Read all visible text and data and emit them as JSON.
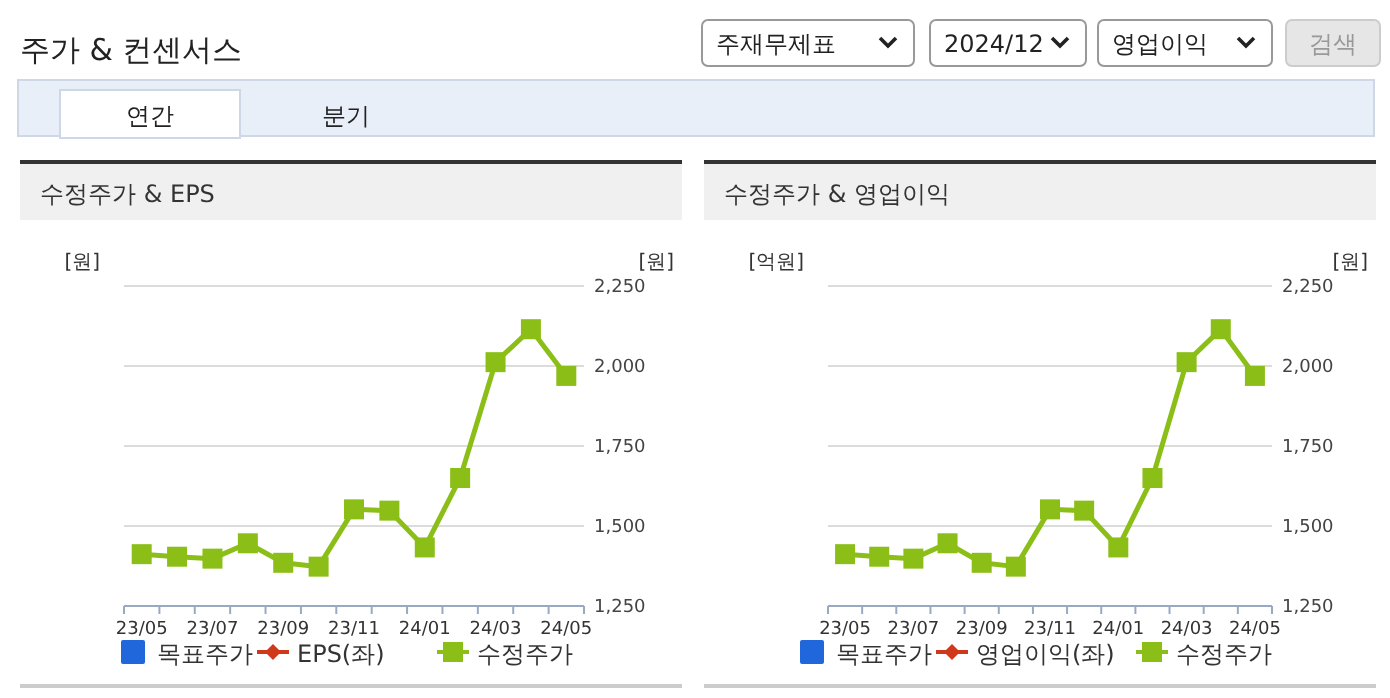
{
  "chart_data": [
    {
      "type": "other",
      "title": "주가 & 컨센서스",
      "annotations": [
        "주재무제표",
        "2024/12",
        "영업이익",
        "검색",
        "연간",
        "분기"
      ]
    },
    {
      "type": "line",
      "title": "수정주가 & EPS",
      "ylabel": "[원]",
      "y2label": "[원]",
      "categories": [
        "23/05",
        null,
        "23/07",
        null,
        "23/09",
        null,
        "23/11",
        null,
        "24/01",
        null,
        "24/03",
        null,
        "24/05"
      ],
      "y2lim": [
        1250,
        2250
      ],
      "y2ticks": [
        {
          "value": 1250,
          "label": "1,250"
        },
        {
          "value": 1500,
          "label": "1,500"
        },
        {
          "value": 1750,
          "label": "1,750"
        },
        {
          "value": 2000,
          "label": "2,000"
        },
        {
          "value": 2250,
          "label": "2,250"
        }
      ],
      "grid": "y",
      "legend": "bottom",
      "series": [
        {
          "name": "목표주가",
          "type": "bar",
          "color": "#2167dc",
          "values": [
            null,
            null,
            null,
            null,
            null,
            null,
            null,
            null,
            null,
            null,
            null,
            null,
            null
          ]
        },
        {
          "name": "EPS(좌)",
          "type": "line",
          "marker": "diamond",
          "color": "#d0381a",
          "values": [
            null,
            null,
            null,
            null,
            null,
            null,
            null,
            null,
            null,
            null,
            null,
            null,
            null
          ]
        },
        {
          "name": "수정주가",
          "type": "line",
          "marker": "square",
          "axis": "y2",
          "color": "#8bbf18",
          "values": [
            1412,
            1404,
            1398,
            1446,
            1385,
            1373,
            1552,
            1548,
            1433,
            1650,
            2012,
            2115,
            1969
          ]
        }
      ]
    },
    {
      "type": "line",
      "title": "수정주가 & 영업이익",
      "ylabel": "[억원]",
      "y2label": "[원]",
      "categories": [
        "23/05",
        null,
        "23/07",
        null,
        "23/09",
        null,
        "23/11",
        null,
        "24/01",
        null,
        "24/03",
        null,
        "24/05"
      ],
      "y2lim": [
        1250,
        2250
      ],
      "y2ticks": [
        {
          "value": 1250,
          "label": "1,250"
        },
        {
          "value": 1500,
          "label": "1,500"
        },
        {
          "value": 1750,
          "label": "1,750"
        },
        {
          "value": 2000,
          "label": "2,000"
        },
        {
          "value": 2250,
          "label": "2,250"
        }
      ],
      "grid": "y",
      "legend": "bottom",
      "series": [
        {
          "name": "목표주가",
          "type": "bar",
          "color": "#2167dc",
          "values": [
            null,
            null,
            null,
            null,
            null,
            null,
            null,
            null,
            null,
            null,
            null,
            null,
            null
          ]
        },
        {
          "name": "영업이익(좌)",
          "type": "line",
          "marker": "diamond",
          "color": "#d0381a",
          "values": [
            null,
            null,
            null,
            null,
            null,
            null,
            null,
            null,
            null,
            null,
            null,
            null,
            null
          ]
        },
        {
          "name": "수정주가",
          "type": "line",
          "marker": "square",
          "axis": "y2",
          "color": "#8bbf18",
          "values": [
            1412,
            1404,
            1398,
            1446,
            1385,
            1373,
            1552,
            1548,
            1433,
            1650,
            2012,
            2115,
            1969
          ]
        }
      ]
    }
  ]
}
